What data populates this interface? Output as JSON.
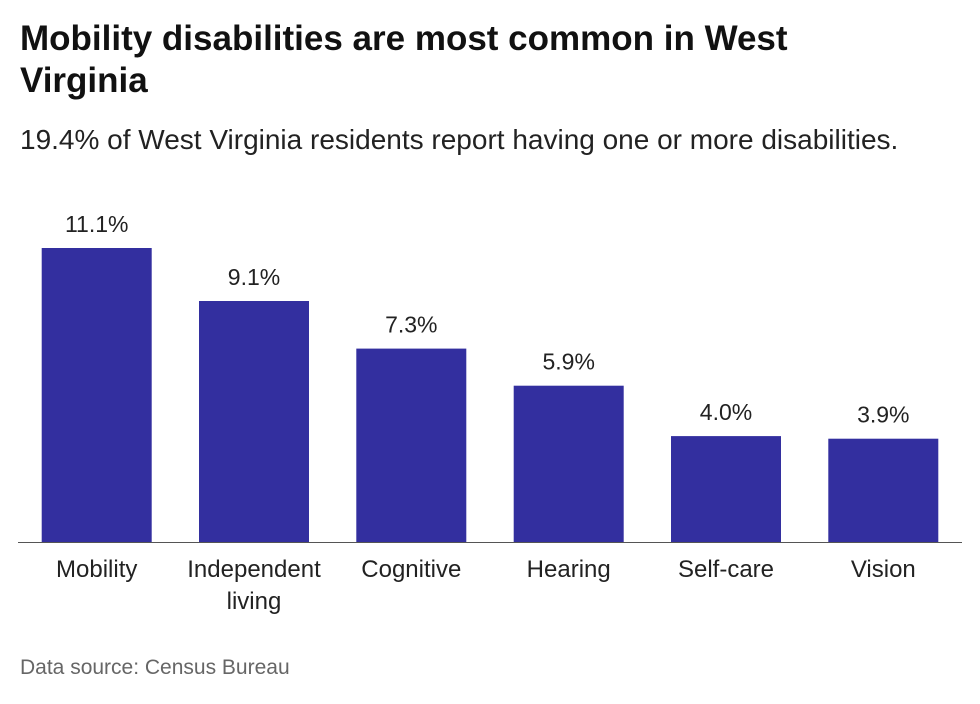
{
  "header": {
    "title": "Mobility disabilities are most common in West Virginia",
    "subtitle": "19.4% of West Virginia residents report having one or more disabilities."
  },
  "footer": {
    "source": "Data source: Census Bureau"
  },
  "colors": {
    "bar": "#332f9f",
    "axis": "#555555",
    "text": "#222222"
  },
  "chart_data": {
    "type": "bar",
    "categories": [
      "Mobility",
      "Independent living",
      "Cognitive",
      "Hearing",
      "Self-care",
      "Vision"
    ],
    "category_lines": [
      [
        "Mobility"
      ],
      [
        "Independent",
        "living"
      ],
      [
        "Cognitive"
      ],
      [
        "Hearing"
      ],
      [
        "Self-care"
      ],
      [
        "Vision"
      ]
    ],
    "values": [
      11.1,
      9.1,
      7.3,
      5.9,
      4.0,
      3.9
    ],
    "data_labels": [
      "11.1%",
      "9.1%",
      "7.3%",
      "5.9%",
      "4.0%",
      "3.9%"
    ],
    "title": "Mobility disabilities are most common in West Virginia",
    "subtitle": "19.4% of West Virginia residents report having one or more disabilities.",
    "xlabel": "",
    "ylabel": "",
    "ylim": [
      0,
      11.1
    ],
    "grid": false,
    "legend": "none"
  }
}
